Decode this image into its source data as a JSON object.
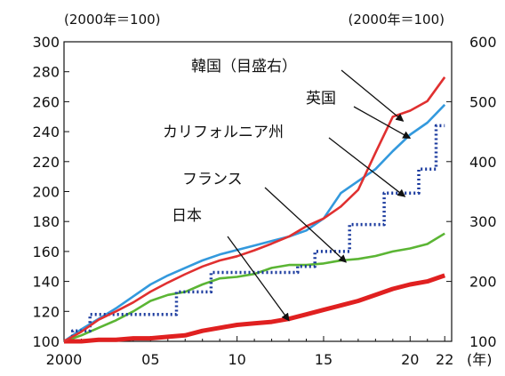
{
  "chart_data": {
    "type": "line",
    "left_unit": "(2000年＝100)",
    "right_unit": "(2000年＝100)",
    "x_unit": "(年)",
    "x": [
      2000,
      2001,
      2002,
      2003,
      2004,
      2005,
      2006,
      2007,
      2008,
      2009,
      2010,
      2011,
      2012,
      2013,
      2014,
      2015,
      2016,
      2017,
      2018,
      2019,
      2020,
      2021,
      2022
    ],
    "x_ticks": [
      {
        "x": 2000,
        "label": "2000"
      },
      {
        "x": 2005,
        "label": "05"
      },
      {
        "x": 2010,
        "label": "10"
      },
      {
        "x": 2015,
        "label": "15"
      },
      {
        "x": 2020,
        "label": "20"
      },
      {
        "x": 2022,
        "label": "22"
      }
    ],
    "xlim": [
      2000,
      2022.4
    ],
    "ylim_left": [
      100,
      300
    ],
    "ylim_right": [
      100,
      600
    ],
    "y_ticks_left": [
      100,
      120,
      140,
      160,
      180,
      200,
      220,
      240,
      260,
      280,
      300
    ],
    "y_ticks_right": [
      100,
      200,
      300,
      400,
      500,
      600
    ],
    "series": [
      {
        "name": "韓国（目盛右）",
        "axis": "right",
        "color": "#e03030",
        "style": "solid",
        "values": [
          100,
          116,
          136,
          150,
          165,
          183,
          198,
          212,
          225,
          235,
          242,
          252,
          263,
          275,
          292,
          305,
          325,
          353,
          415,
          475,
          485,
          501,
          541
        ]
      },
      {
        "name": "英国",
        "axis": "left",
        "color": "#3399dd",
        "style": "solid",
        "values": [
          100,
          108,
          115,
          122,
          130,
          138,
          144,
          149,
          154,
          158,
          161,
          164,
          167,
          170,
          174,
          182,
          199,
          207,
          215,
          227,
          238,
          246,
          258
        ]
      },
      {
        "name": "カリフォルニア州",
        "axis": "left",
        "color": "#1a3a9e",
        "style": "dotted",
        "values": [
          100,
          107,
          118,
          118,
          118,
          118,
          118,
          133,
          133,
          146,
          146,
          146,
          146,
          146,
          150,
          160,
          160,
          178,
          178,
          199,
          199,
          215,
          244
        ]
      },
      {
        "name": "フランス",
        "axis": "left",
        "color": "#5bb534",
        "style": "solid",
        "values": [
          100,
          104,
          109,
          114,
          120,
          127,
          131,
          133,
          138,
          142,
          143,
          145,
          149,
          151,
          151,
          152,
          154,
          155,
          157,
          160,
          162,
          165,
          172
        ]
      },
      {
        "name": "日本",
        "axis": "left",
        "color": "#e02020",
        "style": "solid",
        "values": [
          100,
          100,
          101,
          101,
          102,
          102,
          103,
          104,
          107,
          109,
          111,
          112,
          113,
          115,
          118,
          121,
          124,
          127,
          131,
          135,
          138,
          140,
          144
        ]
      }
    ],
    "annotations": [
      {
        "label": "韓国（目盛右）",
        "series": "韓国（目盛右）"
      },
      {
        "label": "英国",
        "series": "英国"
      },
      {
        "label": "カリフォルニア州",
        "series": "カリフォルニア州"
      },
      {
        "label": "フランス",
        "series": "フランス"
      },
      {
        "label": "日本",
        "series": "日本"
      }
    ]
  }
}
